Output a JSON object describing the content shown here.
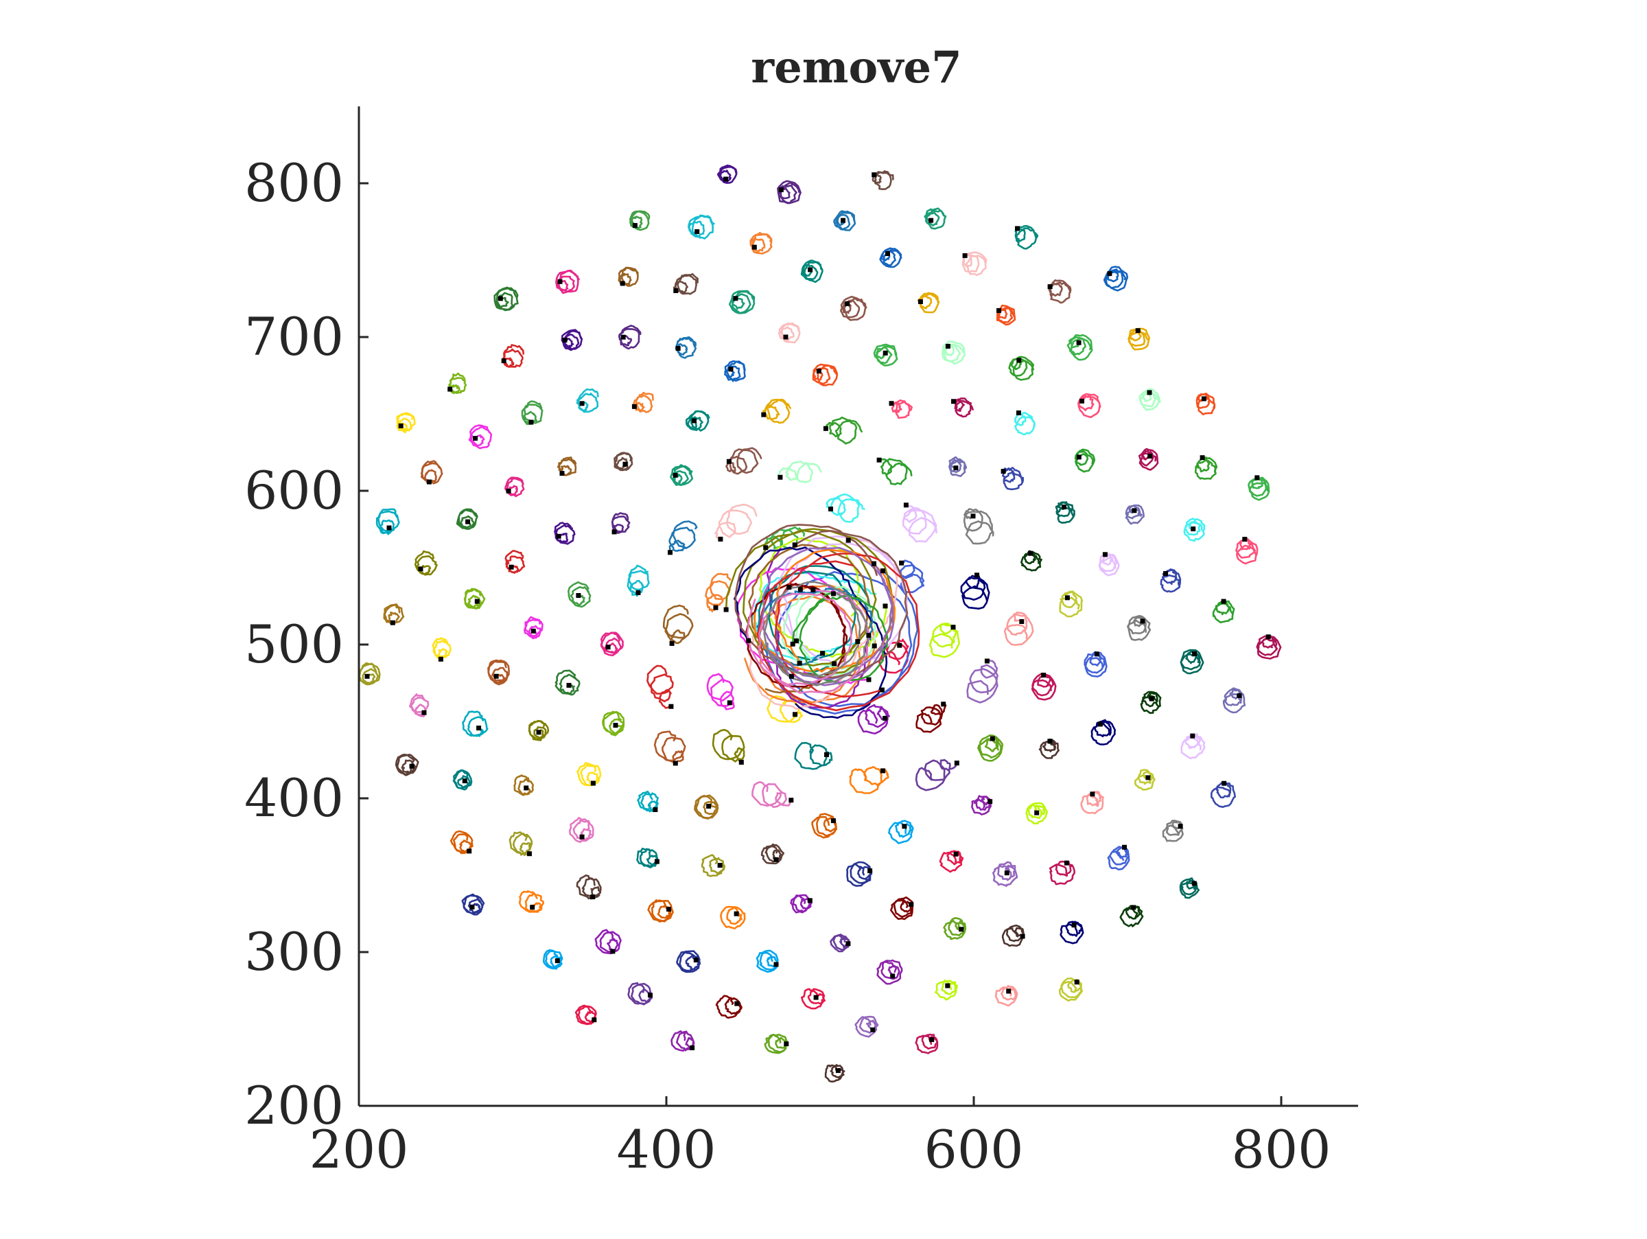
{
  "chart_data": {
    "type": "line",
    "title": "remove7",
    "xlabel": "",
    "ylabel": "",
    "xlim": [
      200,
      850
    ],
    "ylim": [
      200,
      850
    ],
    "xticks": [
      200,
      400,
      600,
      800
    ],
    "yticks": [
      200,
      300,
      400,
      500,
      600,
      700,
      800
    ],
    "grid": false,
    "legend": "none",
    "background": "#ffffff",
    "axis_color": "#262626",
    "endpoint_marker": {
      "shape": "x",
      "color": "#000000"
    },
    "pattern": {
      "description_free_params": true,
      "center": [
        500,
        515
      ],
      "spiral_ring_spacing": 18.5,
      "spiral_min_radius": 35,
      "spiral_max_radius": 300,
      "loop_radius": 6.5,
      "loop_turns": 2.2,
      "core_radius": 55,
      "core_curve_count": 22
    },
    "palette": [
      "#e6194b",
      "#3cb44b",
      "#ffe119",
      "#4363d8",
      "#f58231",
      "#911eb4",
      "#46f0f0",
      "#f032e6",
      "#bcf60c",
      "#fabebe",
      "#008080",
      "#e6beff",
      "#9a6324",
      "#800000",
      "#aaffc3",
      "#808000",
      "#000075",
      "#1f77b4",
      "#ff7f0e",
      "#2ca02c",
      "#d62728",
      "#9467bd",
      "#8c564b",
      "#e377c2",
      "#7f7f7f",
      "#17becf",
      "#6a3d9a",
      "#33a02c",
      "#b15928",
      "#fb9a99",
      "#1b9e77",
      "#d95f02",
      "#7570b3",
      "#e7298a",
      "#66a61e",
      "#e6ab02",
      "#a6761d",
      "#0b3d0b",
      "#5b2a86",
      "#00a6ed",
      "#ff4f79",
      "#7cb518",
      "#c2185b",
      "#00897b",
      "#5d4037",
      "#3949ab",
      "#43a047",
      "#8e24aa",
      "#f4511e",
      "#00acc1",
      "#c0ca33",
      "#6d4c41",
      "#283593",
      "#ad1457",
      "#2e7d32",
      "#4e342e",
      "#1565c0",
      "#9e9d24",
      "#00695c",
      "#4a148c"
    ]
  }
}
